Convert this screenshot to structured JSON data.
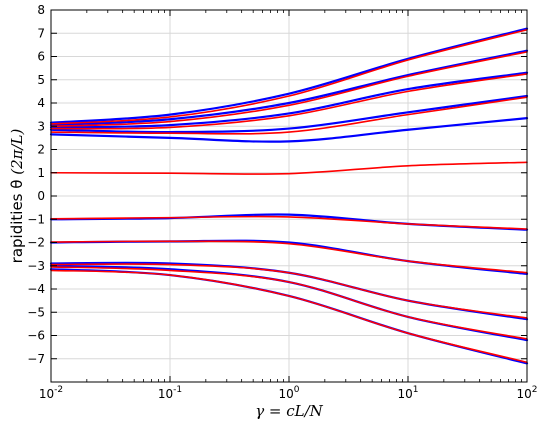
{
  "chart_data": {
    "type": "line",
    "xscale": "log",
    "xlim": [
      0.01,
      100
    ],
    "ylim": [
      -8,
      8
    ],
    "grid": true,
    "legend": "none",
    "xlabel": "γ = cL/N",
    "ylabel_text": "rapidities θ",
    "ylabel_unit": "(2π/L)",
    "xticks": [
      {
        "value": 0.01,
        "base": "10",
        "exp": "-2"
      },
      {
        "value": 0.1,
        "base": "10",
        "exp": "-1"
      },
      {
        "value": 1,
        "base": "10",
        "exp": "0"
      },
      {
        "value": 10,
        "base": "10",
        "exp": "1"
      },
      {
        "value": 100,
        "base": "10",
        "exp": "2"
      }
    ],
    "yticks": [
      -7,
      -6,
      -5,
      -4,
      -3,
      -2,
      -1,
      0,
      1,
      2,
      3,
      4,
      5,
      6,
      7,
      8
    ],
    "colors": {
      "exact": "#ff0000",
      "approx": "#0000ff"
    },
    "x": [
      0.01,
      0.1,
      1,
      10,
      100
    ],
    "series": [
      {
        "values": [
          1.0,
          0.98,
          0.96,
          1.3,
          1.45
        ],
        "color": "#ff0000"
      },
      {
        "values": [
          2.65,
          2.5,
          2.35,
          2.85,
          3.35
        ],
        "color": "#0000ff"
      },
      {
        "values": [
          2.85,
          2.75,
          2.9,
          3.6,
          4.3
        ],
        "color": "#0000ff"
      },
      {
        "values": [
          2.95,
          3.05,
          3.55,
          4.6,
          5.3
        ],
        "color": "#0000ff"
      },
      {
        "values": [
          3.05,
          3.3,
          4.0,
          5.2,
          6.25
        ],
        "color": "#0000ff"
      },
      {
        "values": [
          3.15,
          3.5,
          4.4,
          5.9,
          7.2
        ],
        "color": "#0000ff"
      },
      {
        "values": [
          2.75,
          2.7,
          2.75,
          3.5,
          4.25
        ],
        "color": "#ff0000"
      },
      {
        "values": [
          2.9,
          2.95,
          3.45,
          4.5,
          5.25
        ],
        "color": "#ff0000"
      },
      {
        "values": [
          3.0,
          3.2,
          3.9,
          5.15,
          6.2
        ],
        "color": "#ff0000"
      },
      {
        "values": [
          3.1,
          3.4,
          4.3,
          5.85,
          7.15
        ],
        "color": "#ff0000"
      },
      {
        "values": [
          -1.0,
          -0.95,
          -0.8,
          -1.2,
          -1.45
        ],
        "color": "#0000ff"
      },
      {
        "values": [
          -2.0,
          -1.95,
          -2.0,
          -2.8,
          -3.35
        ],
        "color": "#0000ff"
      },
      {
        "values": [
          -2.9,
          -2.9,
          -3.3,
          -4.5,
          -5.3
        ],
        "color": "#0000ff"
      },
      {
        "values": [
          -3.0,
          -3.15,
          -3.7,
          -5.2,
          -6.2
        ],
        "color": "#0000ff"
      },
      {
        "values": [
          -3.15,
          -3.4,
          -4.3,
          -5.9,
          -7.2
        ],
        "color": "#0000ff"
      },
      {
        "values": [
          -0.98,
          -0.93,
          -0.9,
          -1.2,
          -1.42
        ],
        "color": "#ff0000"
      },
      {
        "values": [
          -1.98,
          -1.95,
          -2.05,
          -2.8,
          -3.3
        ],
        "color": "#ff0000"
      },
      {
        "values": [
          -2.95,
          -2.95,
          -3.3,
          -4.5,
          -5.25
        ],
        "color": "#ff0000"
      },
      {
        "values": [
          -3.05,
          -3.2,
          -3.7,
          -5.2,
          -6.15
        ],
        "color": "#ff0000"
      },
      {
        "values": [
          -3.2,
          -3.4,
          -4.3,
          -5.9,
          -7.15
        ],
        "color": "#ff0000"
      }
    ]
  }
}
